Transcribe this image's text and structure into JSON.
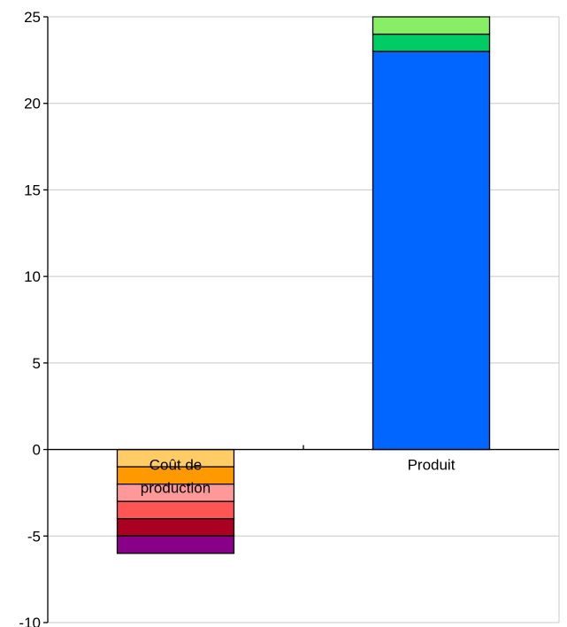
{
  "chart_data": {
    "type": "bar",
    "stacked": true,
    "categories": [
      "Coût de production",
      "Produit"
    ],
    "category_label_lines": [
      [
        "Coût de",
        "production"
      ],
      [
        "Produit"
      ]
    ],
    "ylim": [
      -10,
      25
    ],
    "yticks": [
      -10,
      -5,
      0,
      5,
      10,
      15,
      20,
      25
    ],
    "grid": true,
    "segments": [
      [
        {
          "value": -1,
          "color": "#ffcc66"
        },
        {
          "value": -1,
          "color": "#ff9900"
        },
        {
          "value": -1,
          "color": "#ff9999"
        },
        {
          "value": -1,
          "color": "#ff5555"
        },
        {
          "value": -1,
          "color": "#aa0022"
        },
        {
          "value": -1,
          "color": "#880088"
        }
      ],
      [
        {
          "value": 23,
          "color": "#0066ff"
        },
        {
          "value": 1,
          "color": "#00cc66"
        },
        {
          "value": 1,
          "color": "#88ee66"
        }
      ]
    ]
  }
}
